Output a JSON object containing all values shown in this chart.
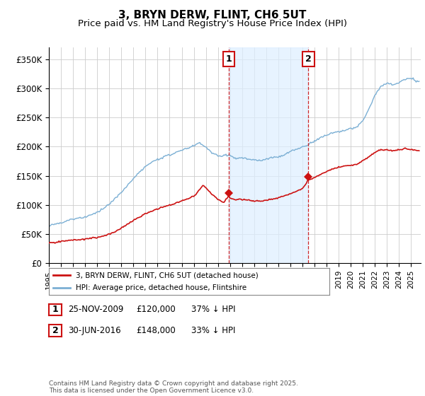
{
  "title": "3, BRYN DERW, FLINT, CH6 5UT",
  "subtitle": "Price paid vs. HM Land Registry's House Price Index (HPI)",
  "title_fontsize": 11,
  "subtitle_fontsize": 9.5,
  "ylabel_ticks": [
    "£0",
    "£50K",
    "£100K",
    "£150K",
    "£200K",
    "£250K",
    "£300K",
    "£350K"
  ],
  "ytick_values": [
    0,
    50000,
    100000,
    150000,
    200000,
    250000,
    300000,
    350000
  ],
  "ylim": [
    0,
    370000
  ],
  "xlim_start": 1995.0,
  "xlim_end": 2025.8,
  "purchase1_date": 2009.9,
  "purchase1_price": 120000,
  "purchase1_label": "1",
  "purchase2_date": 2016.5,
  "purchase2_price": 148000,
  "purchase2_label": "2",
  "hpi_color": "#7bafd4",
  "price_color": "#cc1111",
  "grid_color": "#cccccc",
  "shade_color": "#ddeeff",
  "annotation_box_color": "#cc1111",
  "legend_line1": "3, BRYN DERW, FLINT, CH6 5UT (detached house)",
  "legend_line2": "HPI: Average price, detached house, Flintshire",
  "footnote": "Contains HM Land Registry data © Crown copyright and database right 2025.\nThis data is licensed under the Open Government Licence v3.0.",
  "xtick_years": [
    1995,
    1996,
    1997,
    1998,
    1999,
    2000,
    2001,
    2002,
    2003,
    2004,
    2005,
    2006,
    2007,
    2008,
    2009,
    2010,
    2011,
    2012,
    2013,
    2014,
    2015,
    2016,
    2017,
    2018,
    2019,
    2020,
    2021,
    2022,
    2023,
    2024,
    2025
  ],
  "hpi_waypoints": [
    [
      1995.0,
      65000
    ],
    [
      1996.0,
      70000
    ],
    [
      1997.0,
      75000
    ],
    [
      1998.0,
      80000
    ],
    [
      1999.0,
      88000
    ],
    [
      2000.0,
      100000
    ],
    [
      2001.0,
      120000
    ],
    [
      2002.0,
      145000
    ],
    [
      2003.0,
      165000
    ],
    [
      2004.0,
      178000
    ],
    [
      2005.0,
      185000
    ],
    [
      2006.0,
      193000
    ],
    [
      2007.0,
      200000
    ],
    [
      2007.5,
      205000
    ],
    [
      2008.0,
      198000
    ],
    [
      2008.5,
      188000
    ],
    [
      2009.0,
      182000
    ],
    [
      2009.9,
      185000
    ],
    [
      2010.0,
      183000
    ],
    [
      2010.5,
      178000
    ],
    [
      2011.0,
      180000
    ],
    [
      2011.5,
      178000
    ],
    [
      2012.0,
      176000
    ],
    [
      2012.5,
      175000
    ],
    [
      2013.0,
      178000
    ],
    [
      2013.5,
      180000
    ],
    [
      2014.0,
      183000
    ],
    [
      2014.5,
      186000
    ],
    [
      2015.0,
      192000
    ],
    [
      2015.5,
      196000
    ],
    [
      2016.0,
      200000
    ],
    [
      2016.5,
      204000
    ],
    [
      2017.0,
      210000
    ],
    [
      2017.5,
      215000
    ],
    [
      2018.0,
      220000
    ],
    [
      2018.5,
      225000
    ],
    [
      2019.0,
      228000
    ],
    [
      2019.5,
      230000
    ],
    [
      2020.0,
      232000
    ],
    [
      2020.5,
      235000
    ],
    [
      2021.0,
      245000
    ],
    [
      2021.5,
      265000
    ],
    [
      2022.0,
      290000
    ],
    [
      2022.5,
      305000
    ],
    [
      2023.0,
      310000
    ],
    [
      2023.5,
      308000
    ],
    [
      2024.0,
      312000
    ],
    [
      2024.5,
      318000
    ],
    [
      2025.0,
      320000
    ],
    [
      2025.5,
      315000
    ]
  ],
  "red_waypoints": [
    [
      1995.0,
      35000
    ],
    [
      1996.0,
      37000
    ],
    [
      1997.0,
      40000
    ],
    [
      1998.0,
      43000
    ],
    [
      1999.0,
      46000
    ],
    [
      2000.0,
      52000
    ],
    [
      2001.0,
      63000
    ],
    [
      2002.0,
      76000
    ],
    [
      2003.0,
      88000
    ],
    [
      2004.0,
      96000
    ],
    [
      2005.0,
      103000
    ],
    [
      2006.0,
      110000
    ],
    [
      2007.0,
      118000
    ],
    [
      2007.5,
      130000
    ],
    [
      2007.8,
      138000
    ],
    [
      2008.0,
      132000
    ],
    [
      2008.5,
      122000
    ],
    [
      2009.0,
      112000
    ],
    [
      2009.5,
      108000
    ],
    [
      2009.9,
      120000
    ],
    [
      2010.0,
      115000
    ],
    [
      2010.5,
      112000
    ],
    [
      2011.0,
      113000
    ],
    [
      2011.5,
      112000
    ],
    [
      2012.0,
      111000
    ],
    [
      2012.5,
      110000
    ],
    [
      2013.0,
      112000
    ],
    [
      2013.5,
      114000
    ],
    [
      2014.0,
      117000
    ],
    [
      2014.5,
      120000
    ],
    [
      2015.0,
      124000
    ],
    [
      2015.5,
      128000
    ],
    [
      2016.0,
      133000
    ],
    [
      2016.5,
      148000
    ],
    [
      2017.0,
      152000
    ],
    [
      2017.5,
      158000
    ],
    [
      2018.0,
      163000
    ],
    [
      2018.5,
      168000
    ],
    [
      2019.0,
      170000
    ],
    [
      2019.5,
      172000
    ],
    [
      2020.0,
      173000
    ],
    [
      2020.5,
      175000
    ],
    [
      2021.0,
      182000
    ],
    [
      2021.5,
      188000
    ],
    [
      2022.0,
      196000
    ],
    [
      2022.5,
      200000
    ],
    [
      2023.0,
      200000
    ],
    [
      2023.5,
      198000
    ],
    [
      2024.0,
      200000
    ],
    [
      2024.5,
      202000
    ],
    [
      2025.0,
      200000
    ],
    [
      2025.5,
      198000
    ]
  ]
}
